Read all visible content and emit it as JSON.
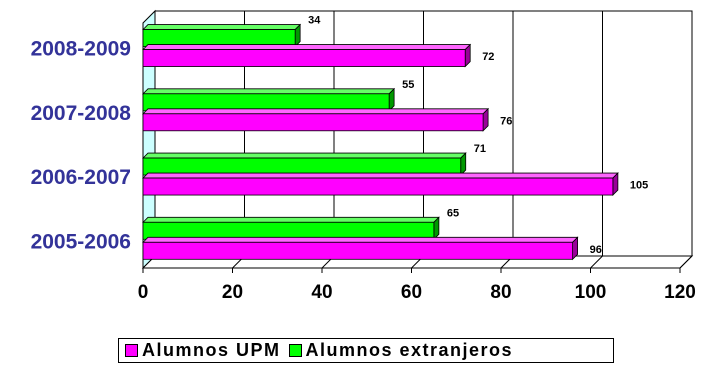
{
  "chart_data": {
    "type": "bar",
    "orientation": "horizontal",
    "categories": [
      "2005-2006",
      "2006-2007",
      "2007-2008",
      "2008-2009"
    ],
    "series": [
      {
        "name": "Alumnos UPM",
        "values": [
          96,
          105,
          76,
          72
        ],
        "color": "#ff00ff"
      },
      {
        "name": "Alumnos extranjeros",
        "values": [
          65,
          71,
          55,
          34
        ],
        "color": "#00ff00"
      }
    ],
    "xlim": [
      0,
      120
    ],
    "xticks": [
      0,
      20,
      40,
      60,
      80,
      100,
      120
    ],
    "grid": true,
    "three_d": true,
    "wall_color": "#ccffff",
    "legend_placement": "bottom"
  },
  "legend": {
    "items": [
      {
        "label": "Alumnos UPM",
        "color": "#ff00ff"
      },
      {
        "label": "Alumnos extranjeros",
        "color": "#00ff00"
      }
    ]
  }
}
